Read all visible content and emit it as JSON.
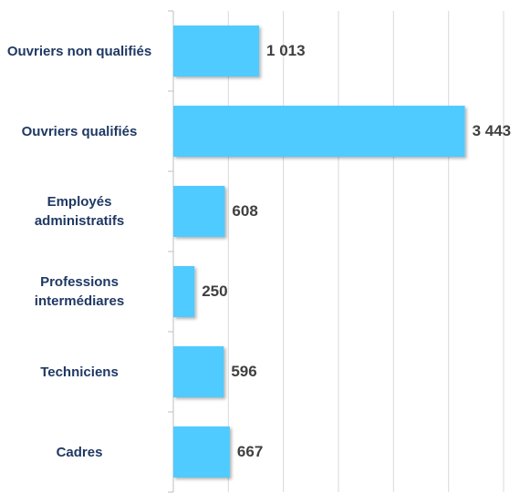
{
  "chart_data": {
    "type": "bar",
    "orientation": "horizontal",
    "categories": [
      "Ouvriers non qualifiés",
      "Ouvriers qualifiés",
      "Employés administratifs",
      "Professions intermédiares",
      "Techniciens",
      "Cadres"
    ],
    "values": [
      1013,
      3443,
      608,
      250,
      596,
      667
    ],
    "value_labels": [
      "1 013",
      "3 443",
      "608",
      "250",
      "596",
      "667"
    ],
    "color": "#4fcbff",
    "xlim": [
      0,
      3900
    ],
    "xticks": [
      0,
      650,
      1300,
      1950,
      2600,
      3250,
      3900
    ],
    "grid": true
  }
}
